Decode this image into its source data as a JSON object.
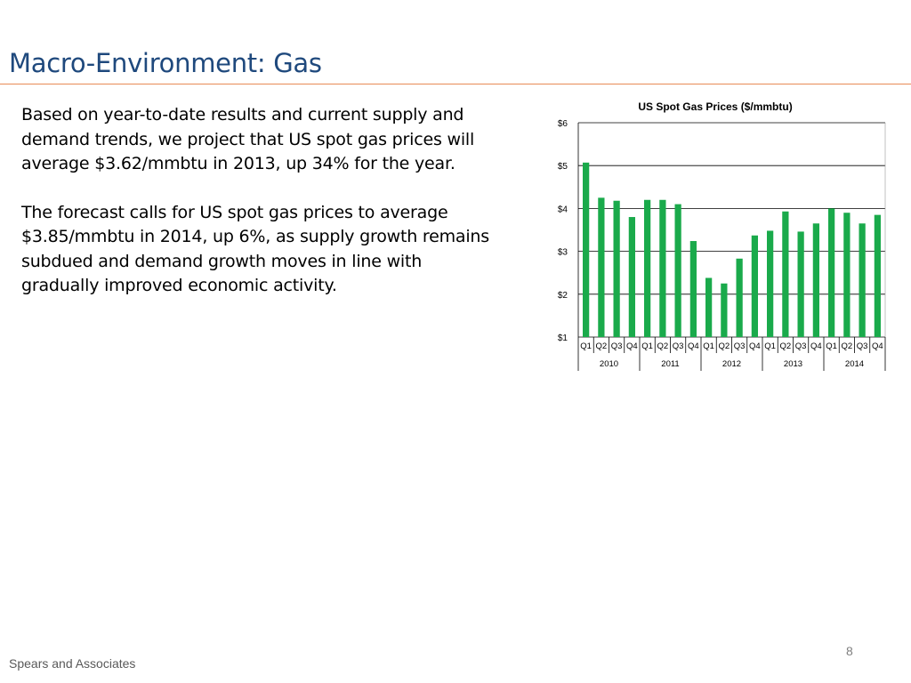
{
  "slide": {
    "title": "Macro-Environment: Gas",
    "paragraphs": [
      "Based on year-to-date results and current supply and demand trends, we project that US spot gas prices will average $3.62/mmbtu in 2013, up 34% for the year.",
      "The forecast calls for US spot gas prices to average $3.85/mmbtu in 2014, up 6%, as supply growth remains subdued and demand growth moves in line with gradually improved economic activity."
    ],
    "footer": "Spears and Associates",
    "page_number": "8"
  },
  "chart_data": {
    "type": "bar",
    "title": "US Spot Gas Prices ($/mmbtu)",
    "xlabel": "",
    "ylabel": "",
    "ylim": [
      1,
      6
    ],
    "yticks": [
      1,
      2,
      3,
      4,
      5,
      6
    ],
    "ytick_labels": [
      "$1",
      "$2",
      "$3",
      "$4",
      "$5",
      "$6"
    ],
    "categories": [
      "Q1",
      "Q2",
      "Q3",
      "Q4",
      "Q1",
      "Q2",
      "Q3",
      "Q4",
      "Q1",
      "Q2",
      "Q3",
      "Q4",
      "Q1",
      "Q2",
      "Q3",
      "Q4",
      "Q1",
      "Q2",
      "Q3",
      "Q4"
    ],
    "groups": [
      "2010",
      "2011",
      "2012",
      "2013",
      "2014"
    ],
    "values": [
      5.07,
      4.25,
      4.18,
      3.8,
      4.2,
      4.2,
      4.1,
      3.24,
      2.38,
      2.25,
      2.83,
      3.37,
      3.48,
      3.93,
      3.46,
      3.65,
      4.0,
      3.9,
      3.65,
      3.85
    ],
    "grid": true,
    "legend": "none",
    "bar_color": "#1aaa4b"
  }
}
